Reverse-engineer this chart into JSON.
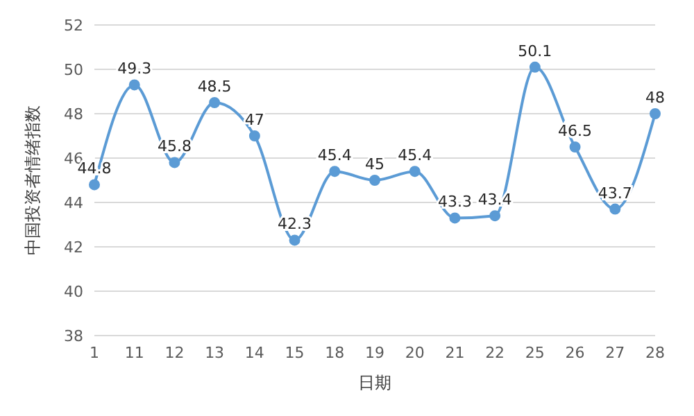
{
  "chart_data": {
    "type": "line",
    "xlabel": "日期",
    "ylabel": "中国投资者情绪指数",
    "categories": [
      "1",
      "11",
      "12",
      "13",
      "14",
      "15",
      "18",
      "19",
      "20",
      "21",
      "22",
      "25",
      "26",
      "27",
      "28"
    ],
    "series": [
      {
        "color": "#5b9bd5",
        "values": [
          44.8,
          49.3,
          45.8,
          48.5,
          47,
          42.3,
          45.4,
          45,
          45.4,
          43.3,
          43.4,
          50.1,
          46.5,
          43.7,
          48
        ]
      }
    ],
    "ylim": [
      38,
      52
    ],
    "yticks": [
      38,
      40,
      42,
      44,
      46,
      48,
      50,
      52
    ],
    "grid": "y",
    "marker": "circle",
    "line_style": "solid",
    "data_labels": true
  }
}
